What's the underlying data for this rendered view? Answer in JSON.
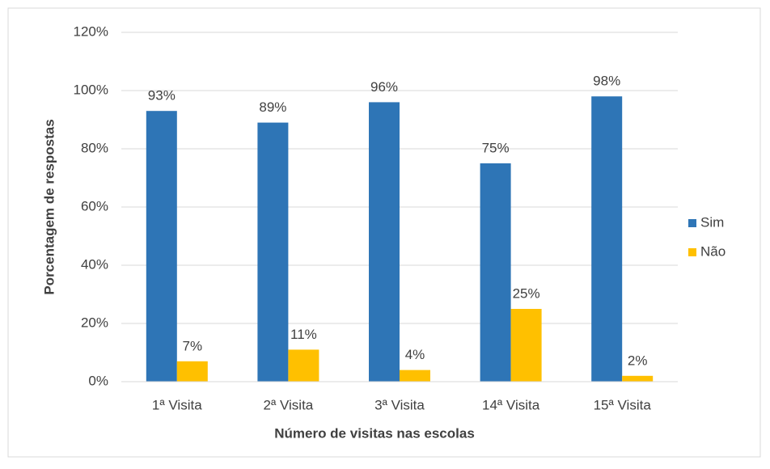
{
  "chart_data": {
    "type": "bar",
    "x_label": "Número de visitas nas escolas",
    "y_label": "Porcentagem de respostas",
    "categories": [
      "1ª Visita",
      "2ª Visita",
      "3ª Visita",
      "14ª Visita",
      "15ª Visita"
    ],
    "series": [
      {
        "name": "Sim",
        "color": "#2e75b6",
        "values": [
          93,
          89,
          96,
          75,
          98
        ],
        "value_labels": [
          "93%",
          "89%",
          "96%",
          "75%",
          "98%"
        ]
      },
      {
        "name": "Não",
        "color": "#ffc000",
        "values": [
          7,
          11,
          4,
          25,
          2
        ],
        "value_labels": [
          "7%",
          "11%",
          "4%",
          "25%",
          "2%"
        ]
      }
    ],
    "ylim": [
      0,
      120
    ],
    "yticks": [
      {
        "value": 0,
        "label": "0%"
      },
      {
        "value": 20,
        "label": "20%"
      },
      {
        "value": 40,
        "label": "40%"
      },
      {
        "value": 60,
        "label": "60%"
      },
      {
        "value": 80,
        "label": "80%"
      },
      {
        "value": 100,
        "label": "100%"
      },
      {
        "value": 120,
        "label": "120%"
      }
    ],
    "grid": true,
    "legend": "right"
  }
}
